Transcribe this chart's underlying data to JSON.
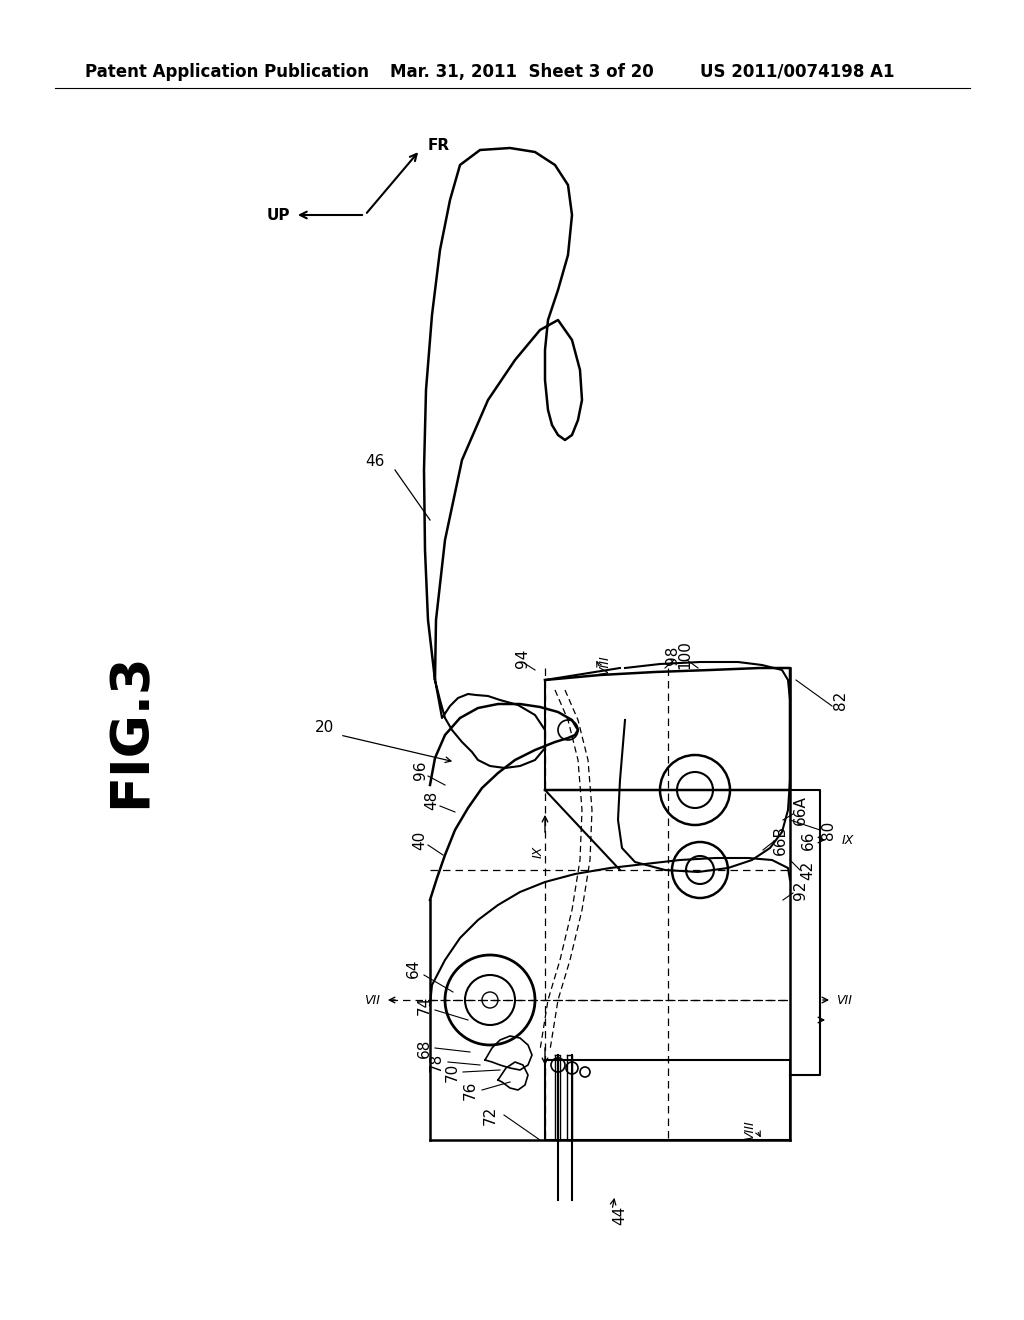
{
  "background_color": "#ffffff",
  "header_left": "Patent Application Publication",
  "header_mid": "Mar. 31, 2011  Sheet 3 of 20",
  "header_right": "US 2011/0074198 A1",
  "fig_label": "FIG.3",
  "header_fontsize": 12,
  "ref_fontsize": 11
}
